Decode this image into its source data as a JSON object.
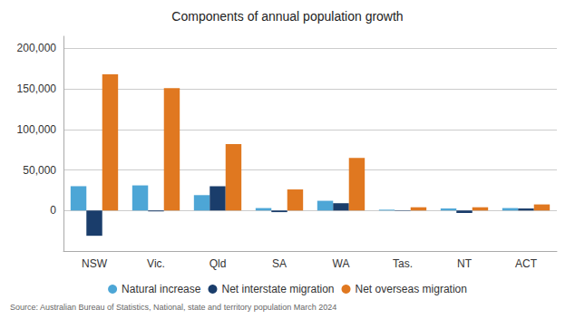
{
  "chart_data": {
    "type": "bar",
    "title": "Components of annual population growth",
    "source": "Source: Australian Bureau of Statistics, National, state and territory population March 2024",
    "categories": [
      "NSW",
      "Vic.",
      "Qld",
      "SA",
      "WA",
      "Tas.",
      "NT",
      "ACT"
    ],
    "series": [
      {
        "name": "Natural increase",
        "color": "#4da6d6",
        "values": [
          30000,
          31000,
          19000,
          3000,
          12000,
          1000,
          2500,
          3000
        ]
      },
      {
        "name": "Net interstate migration",
        "color": "#1a3d6b",
        "values": [
          -31183,
          -1000,
          30000,
          -2000,
          9000,
          -500,
          -3000,
          2500
        ]
      },
      {
        "name": "Net overseas migration",
        "color": "#e07820",
        "values": [
          168148,
          151000,
          82000,
          26000,
          65000,
          4000,
          4000,
          7500
        ]
      }
    ],
    "ylim": [
      -50000,
      215000
    ],
    "yticks": [
      0,
      {
        "value": 50000,
        "label": "50,000"
      },
      {
        "value": 100000,
        "label": "100,000"
      },
      {
        "value": 150000,
        "label": "150,000"
      },
      {
        "value": 200000,
        "label": "200,000"
      }
    ],
    "grid": true,
    "legend": "bottom"
  }
}
